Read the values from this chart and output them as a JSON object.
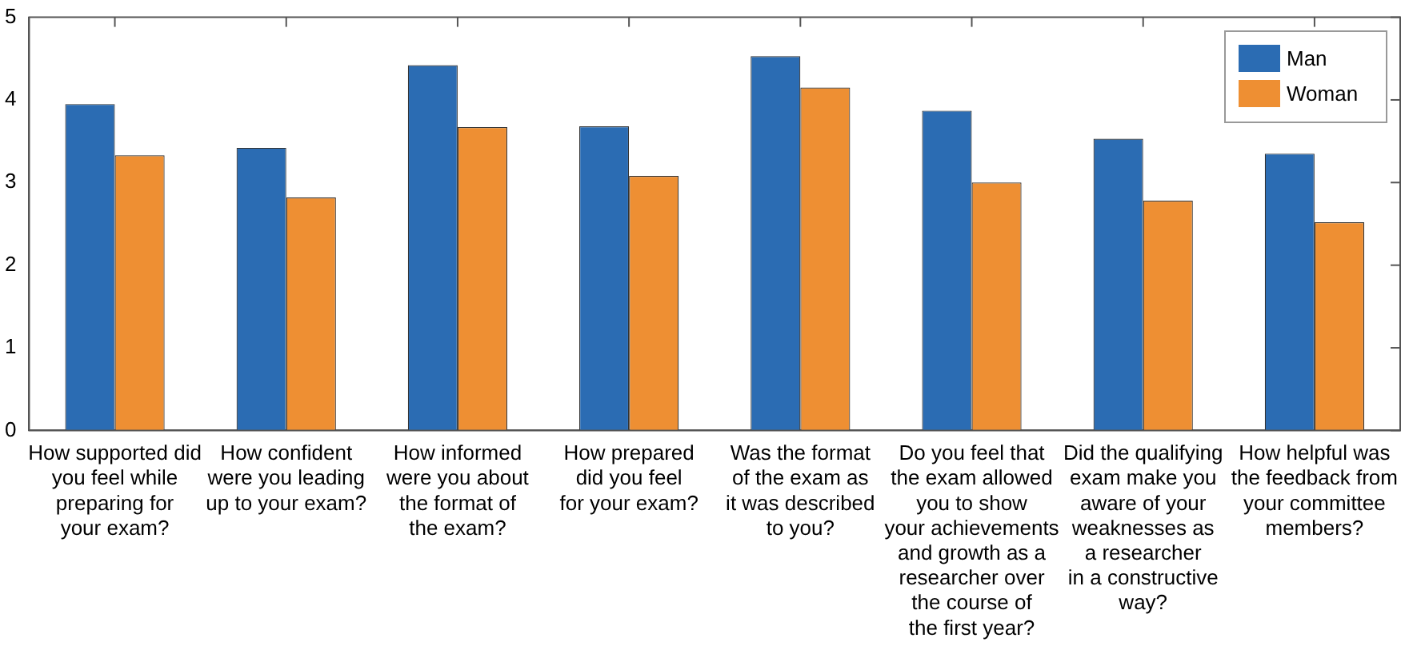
{
  "chart_data": {
    "type": "bar",
    "categories": [
      "How supported did\nyou feel while\npreparing for\nyour exam?",
      "How confident\nwere you leading\nup to your exam?",
      "How informed\nwere you about\nthe format of\nthe exam?",
      "How prepared\ndid you feel\nfor your exam?",
      "Was the format\nof the exam as\nit was described\nto you?",
      "Do you feel that\nthe exam allowed\nyou to show\nyour achievements\nand growth as a\nresearcher over\nthe course of\nthe first year?",
      "Did the qualifying\nexam make you\naware of your\nweaknesses as\na researcher\nin a constructive\nway?",
      "How helpful was\nthe feedback from\nyour committee\nmembers?"
    ],
    "series": [
      {
        "name": "Man",
        "color": "#2b6cb3",
        "values": [
          3.95,
          3.42,
          4.42,
          3.68,
          4.53,
          3.87,
          3.53,
          3.35
        ]
      },
      {
        "name": "Woman",
        "color": "#ee8f33",
        "values": [
          3.33,
          2.82,
          3.67,
          3.08,
          4.15,
          3.0,
          2.78,
          2.52
        ]
      }
    ],
    "ylim": [
      0,
      5
    ],
    "yticks": [
      0,
      1,
      2,
      3,
      4,
      5
    ],
    "grid": false,
    "legend": "top right"
  }
}
